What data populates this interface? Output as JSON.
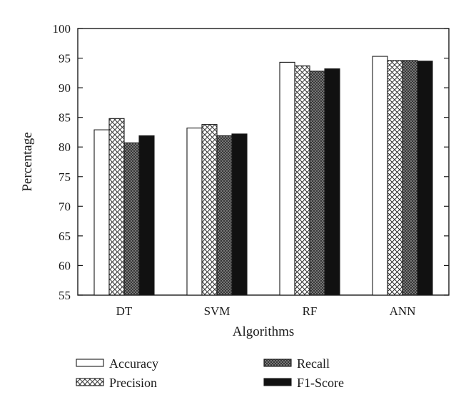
{
  "chart_data": {
    "type": "bar",
    "title": "",
    "xlabel": "Algorithms",
    "ylabel": "Percentage",
    "ylim": [
      55,
      100
    ],
    "yticks": [
      55,
      60,
      65,
      70,
      75,
      80,
      85,
      90,
      95,
      100
    ],
    "categories": [
      "DT",
      "SVM",
      "RF",
      "ANN"
    ],
    "series": [
      {
        "name": "Accuracy",
        "values": [
          82.9,
          83.2,
          94.3,
          95.3
        ],
        "fill": "white"
      },
      {
        "name": "Precision",
        "values": [
          84.8,
          83.8,
          93.7,
          94.6
        ],
        "fill": "crosshatch"
      },
      {
        "name": "Recall",
        "values": [
          80.7,
          81.9,
          92.8,
          94.6
        ],
        "fill": "dense-crosshatch"
      },
      {
        "name": "F1-Score",
        "values": [
          81.9,
          82.2,
          93.2,
          94.5
        ],
        "fill": "black"
      }
    ],
    "grid": false,
    "legend_position": "bottom"
  }
}
